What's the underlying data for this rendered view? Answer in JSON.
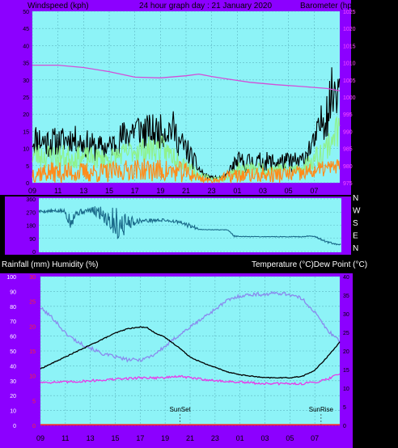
{
  "colors": {
    "frame": "#8c00ff",
    "plot_bg": "#8df3f7",
    "grid": "#5fb7c2",
    "axis_text": "#000000",
    "pink_text": "#ff4fff",
    "red_text": "#ff2a2a",
    "wind_gust": "#000000",
    "wind_avg": "#8ff28c",
    "wind_orange": "#ff8c1a",
    "barometer": "#d24fd8",
    "direction": "#1a6a8a",
    "temperature": "#8a8aee",
    "dewpoint": "#000000",
    "humidity_pink": "#e83ae8",
    "rain_line": "#ff1a1a"
  },
  "chart_data": [
    {
      "id": "wind",
      "type": "line",
      "title": "24 hour graph day : 21 January 2020",
      "ylabel_left": "Windspeed (kph)",
      "ylabel_right": "Barometer (hpa)",
      "x_ticks": [
        "11",
        "13",
        "15",
        "17",
        "19",
        "21",
        "23",
        "01",
        "03",
        "05",
        "07",
        "09"
      ],
      "y_left_ticks": [
        "0",
        "5",
        "10",
        "15",
        "20",
        "25",
        "30",
        "35",
        "40",
        "45",
        "50"
      ],
      "y_right_ticks": [
        "975",
        "980",
        "985",
        "990",
        "995",
        "1000",
        "1005",
        "1010",
        "1015",
        "1020",
        "1025"
      ],
      "ylim_left": [
        0,
        50
      ],
      "ylim_right": [
        975,
        1025
      ],
      "xlim_hours": [
        9,
        33
      ],
      "grid": true,
      "series": [
        {
          "key": "gust",
          "color_key": "wind_gust",
          "seed": 11,
          "profile": [
            [
              9,
              8,
              18
            ],
            [
              10,
              7,
              17
            ],
            [
              11,
              8,
              16
            ],
            [
              12,
              9,
              17
            ],
            [
              13,
              7,
              16
            ],
            [
              14,
              6,
              14
            ],
            [
              15,
              7,
              14
            ],
            [
              16,
              8,
              18
            ],
            [
              17,
              10,
              22
            ],
            [
              18,
              9,
              20
            ],
            [
              19,
              10,
              20
            ],
            [
              20,
              11,
              21
            ],
            [
              20.5,
              7,
              16
            ],
            [
              21,
              6,
              14
            ],
            [
              21.5,
              4,
              10
            ],
            [
              22,
              2,
              6
            ],
            [
              22.5,
              1,
              3
            ],
            [
              23,
              1,
              2
            ],
            [
              24,
              1,
              2
            ],
            [
              24.5,
              2,
              6
            ],
            [
              25,
              3,
              9
            ],
            [
              26,
              3,
              9
            ],
            [
              27,
              3,
              9
            ],
            [
              28,
              3,
              9
            ],
            [
              29,
              3,
              9
            ],
            [
              30,
              3,
              9
            ],
            [
              30.5,
              6,
              13
            ],
            [
              31,
              8,
              15
            ],
            [
              31.5,
              12,
              22
            ],
            [
              32,
              13,
              30
            ],
            [
              32.5,
              18,
              35
            ],
            [
              33,
              22,
              38
            ]
          ]
        },
        {
          "key": "avg",
          "color_key": "wind_avg",
          "seed": 23,
          "profile": [
            [
              9,
              4,
              12
            ],
            [
              12,
              4,
              11
            ],
            [
              15,
              4,
              10
            ],
            [
              17,
              6,
              13
            ],
            [
              19,
              6,
              14
            ],
            [
              20.5,
              4,
              10
            ],
            [
              21.5,
              2,
              6
            ],
            [
              22,
              1,
              3
            ],
            [
              23,
              0.5,
              2
            ],
            [
              24,
              0.5,
              2
            ],
            [
              24.5,
              1,
              4
            ],
            [
              25,
              2,
              6
            ],
            [
              30,
              2,
              6
            ],
            [
              30.5,
              3,
              8
            ],
            [
              31,
              4,
              10
            ],
            [
              32,
              6,
              15
            ],
            [
              32.5,
              8,
              20
            ],
            [
              33,
              10,
              22
            ]
          ]
        },
        {
          "key": "orange",
          "color_key": "wind_orange",
          "seed": 37,
          "profile": [
            [
              9,
              0,
              6
            ],
            [
              12,
              0,
              6
            ],
            [
              15,
              0,
              6
            ],
            [
              17,
              1,
              7
            ],
            [
              19,
              0,
              7
            ],
            [
              21,
              0,
              6
            ],
            [
              22,
              0,
              3
            ],
            [
              23,
              0,
              1
            ],
            [
              24.5,
              0,
              4
            ],
            [
              30,
              0,
              5
            ],
            [
              31,
              1,
              6
            ],
            [
              33,
              3,
              7
            ]
          ]
        },
        {
          "key": "barometer",
          "axis": "right",
          "color_key": "barometer",
          "points": [
            [
              9,
              1009.3
            ],
            [
              11,
              1009.3
            ],
            [
              13,
              1008.6
            ],
            [
              15,
              1007.4
            ],
            [
              17,
              1005.8
            ],
            [
              19,
              1005.6
            ],
            [
              21,
              1006.2
            ],
            [
              22,
              1006.7
            ],
            [
              23,
              1006.0
            ],
            [
              24,
              1005.4
            ],
            [
              26,
              1004.3
            ],
            [
              28,
              1003.6
            ],
            [
              30,
              1003.1
            ],
            [
              31,
              1002.8
            ],
            [
              32,
              1002.5
            ],
            [
              33,
              1001.8
            ]
          ]
        }
      ]
    },
    {
      "id": "direction",
      "type": "line",
      "xlim_hours": [
        9,
        33
      ],
      "y_labels": [
        "N",
        "W",
        "S",
        "E",
        "N"
      ],
      "y_ticks_left": [
        "360",
        "270",
        "180",
        "90",
        "0"
      ],
      "ylim": [
        0,
        360
      ],
      "color_key": "direction",
      "seed": 5,
      "profile": [
        [
          9,
          265,
          285
        ],
        [
          11,
          265,
          290
        ],
        [
          11.5,
          150,
          280
        ],
        [
          12,
          240,
          290
        ],
        [
          13,
          270,
          295
        ],
        [
          14,
          200,
          330
        ],
        [
          15,
          80,
          320
        ],
        [
          15.5,
          60,
          300
        ],
        [
          16,
          150,
          250
        ],
        [
          17,
          195,
          225
        ],
        [
          19,
          205,
          225
        ],
        [
          20,
          190,
          215
        ],
        [
          21,
          160,
          190
        ],
        [
          21.5,
          150,
          170
        ],
        [
          22,
          148,
          152
        ],
        [
          24,
          146,
          150
        ],
        [
          24.5,
          100,
          110
        ],
        [
          25,
          100,
          104
        ],
        [
          30,
          98,
          104
        ],
        [
          30.5,
          105,
          110
        ],
        [
          31,
          95,
          105
        ],
        [
          31.5,
          70,
          85
        ],
        [
          32,
          55,
          70
        ],
        [
          32.5,
          45,
          55
        ],
        [
          33,
          40,
          50
        ]
      ]
    },
    {
      "id": "temp",
      "type": "line",
      "ylabel_left": "Rainfall (mm)  Humidity (%)",
      "ylabel_right": "Temperature (°C)Dew Point (°C)",
      "x_ticks": [
        "11",
        "13",
        "15",
        "17",
        "19",
        "21",
        "23",
        "01",
        "03",
        "05",
        "07",
        "09"
      ],
      "y_left_ticks": [
        "0",
        "10",
        "20",
        "30",
        "40",
        "50",
        "60",
        "70",
        "80",
        "90",
        "100"
      ],
      "y_red_ticks": [
        "0",
        "5",
        "10",
        "15",
        "20",
        "25",
        "30"
      ],
      "y_right_ticks": [
        "0",
        "5",
        "10",
        "15",
        "20",
        "25",
        "30",
        "35",
        "40"
      ],
      "ylim_left": [
        0,
        100
      ],
      "ylim_right": [
        0,
        40
      ],
      "xlim_hours": [
        9,
        33
      ],
      "grid": true,
      "annotations": [
        {
          "label": "SunSet",
          "hour": 20.2
        },
        {
          "label": "SunRise",
          "hour": 31.5
        }
      ],
      "series": [
        {
          "key": "temperature",
          "axis": "left",
          "color_key": "temperature",
          "noise": 1.2,
          "points": [
            [
              9,
              79
            ],
            [
              10,
              72
            ],
            [
              11,
              62
            ],
            [
              12,
              56
            ],
            [
              13,
              52
            ],
            [
              14,
              48
            ],
            [
              15,
              46
            ],
            [
              16,
              44
            ],
            [
              17,
              44
            ],
            [
              18,
              47
            ],
            [
              19,
              53
            ],
            [
              20,
              60
            ],
            [
              21,
              66
            ],
            [
              22,
              72
            ],
            [
              23,
              78
            ],
            [
              24,
              84
            ],
            [
              25,
              87
            ],
            [
              26,
              88
            ],
            [
              27,
              88
            ],
            [
              28,
              89
            ],
            [
              29,
              88
            ],
            [
              30,
              85
            ],
            [
              31,
              76
            ],
            [
              32,
              64
            ],
            [
              33,
              57
            ]
          ]
        },
        {
          "key": "dewpoint",
          "axis": "left",
          "color_key": "dewpoint",
          "noise": 0.3,
          "points": [
            [
              9,
              38
            ],
            [
              10,
              42
            ],
            [
              11,
              46
            ],
            [
              12,
              50
            ],
            [
              13,
              54
            ],
            [
              14,
              58
            ],
            [
              15,
              62
            ],
            [
              16,
              65
            ],
            [
              17,
              66
            ],
            [
              17.5,
              66
            ],
            [
              18,
              63
            ],
            [
              19,
              59
            ],
            [
              20,
              53
            ],
            [
              21,
              46
            ],
            [
              22,
              42
            ],
            [
              23,
              39
            ],
            [
              24,
              36
            ],
            [
              25,
              34
            ],
            [
              26,
              33
            ],
            [
              27,
              32
            ],
            [
              28,
              32
            ],
            [
              29,
              32
            ],
            [
              30,
              33
            ],
            [
              31,
              37
            ],
            [
              32,
              46
            ],
            [
              33,
              56
            ]
          ]
        },
        {
          "key": "humidity",
          "axis": "left",
          "color_key": "humidity_pink",
          "noise": 0.8,
          "points": [
            [
              9,
              29
            ],
            [
              10,
              29
            ],
            [
              11,
              29
            ],
            [
              12,
              29.5
            ],
            [
              13,
              30
            ],
            [
              14,
              30.5
            ],
            [
              15,
              31
            ],
            [
              16,
              31.5
            ],
            [
              17,
              32
            ],
            [
              18,
              32
            ],
            [
              19,
              32
            ],
            [
              20,
              33
            ],
            [
              21,
              32
            ],
            [
              22,
              31
            ],
            [
              23,
              30
            ],
            [
              24,
              29.5
            ],
            [
              25,
              29
            ],
            [
              26,
              28.5
            ],
            [
              27,
              28
            ],
            [
              28,
              28
            ],
            [
              29,
              28
            ],
            [
              30,
              28
            ],
            [
              31,
              29
            ],
            [
              32,
              31
            ],
            [
              33,
              35
            ]
          ]
        },
        {
          "key": "rain",
          "axis": "left",
          "color_key": "rain_line",
          "noise": 0,
          "points": [
            [
              9,
              0.4
            ],
            [
              33,
              0.4
            ]
          ]
        }
      ]
    }
  ]
}
